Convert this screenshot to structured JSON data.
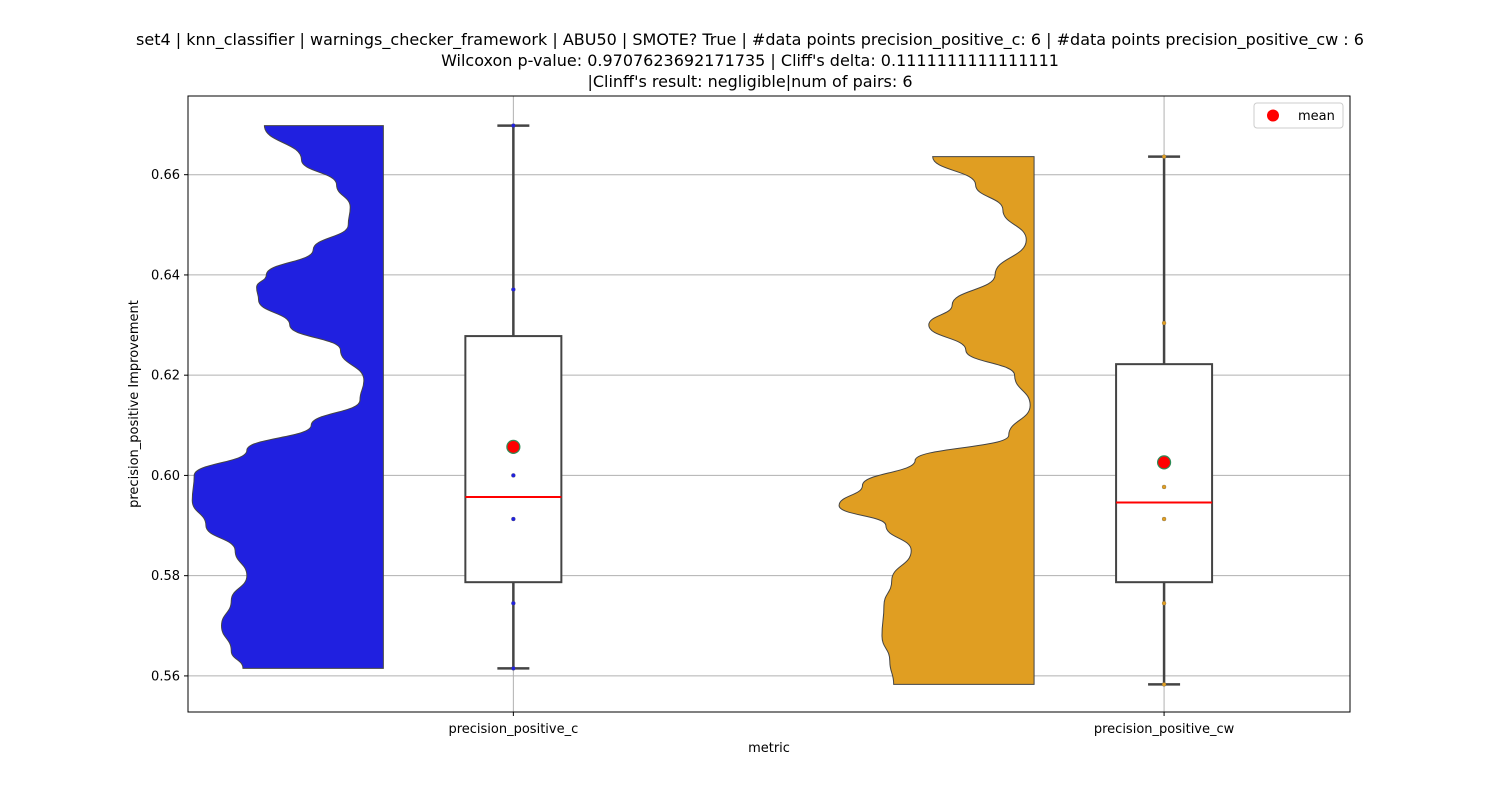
{
  "chart_data": {
    "type": "violin+box",
    "title_lines": [
      "set4 | knn_classifier | warnings_checker_framework | ABU50 | SMOTE? True | #data points precision_positive_c: 6 | #data points precision_positive_cw : 6",
      "Wilcoxon p-value: 0.9707623692171735 | Cliff's delta: 0.1111111111111111",
      "|Clinff's result: negligible|num of pairs: 6"
    ],
    "xlabel": "metric",
    "ylabel": "precision_positive Improvement",
    "ylim": [
      0.5528,
      0.6757
    ],
    "yticks": [
      0.56,
      0.58,
      0.6,
      0.62,
      0.64,
      0.66
    ],
    "ytick_labels": [
      "0.56",
      "0.58",
      "0.60",
      "0.62",
      "0.64",
      "0.66"
    ],
    "grid": true,
    "legend": {
      "position": "top-right",
      "label": "mean",
      "marker_color": "#ff0000"
    },
    "categories": [
      "precision_positive_c",
      "precision_positive_cw"
    ],
    "series": [
      {
        "name": "precision_positive_c",
        "color": "#2020e0",
        "points": [
          0.5615,
          0.5745,
          0.5913,
          0.6,
          0.6371,
          0.6698
        ],
        "box": {
          "whisker_low": 0.5615,
          "q1": 0.5787,
          "median": 0.5957,
          "q3": 0.6278,
          "whisker_high": 0.6698
        },
        "mean": 0.6057,
        "violin_profile": [
          [
            0.5615,
            0.72
          ],
          [
            0.565,
            0.78
          ],
          [
            0.57,
            0.83
          ],
          [
            0.575,
            0.78
          ],
          [
            0.58,
            0.7
          ],
          [
            0.585,
            0.76
          ],
          [
            0.59,
            0.91
          ],
          [
            0.595,
            0.98
          ],
          [
            0.6,
            0.97
          ],
          [
            0.605,
            0.7
          ],
          [
            0.61,
            0.37
          ],
          [
            0.615,
            0.12
          ],
          [
            0.619,
            0.1
          ],
          [
            0.625,
            0.22
          ],
          [
            0.63,
            0.48
          ],
          [
            0.635,
            0.64
          ],
          [
            0.6375,
            0.65
          ],
          [
            0.64,
            0.6
          ],
          [
            0.645,
            0.36
          ],
          [
            0.65,
            0.18
          ],
          [
            0.6535,
            0.17
          ],
          [
            0.658,
            0.24
          ],
          [
            0.663,
            0.42
          ],
          [
            0.6698,
            0.61
          ]
        ]
      },
      {
        "name": "precision_positive_cw",
        "color": "#e09e22",
        "points": [
          0.5583,
          0.5745,
          0.5913,
          0.5977,
          0.6304,
          0.6636
        ],
        "box": {
          "whisker_low": 0.5583,
          "q1": 0.5787,
          "median": 0.5946,
          "q3": 0.6222,
          "whisker_high": 0.6636
        },
        "mean": 0.6026,
        "violin_profile": [
          [
            0.5583,
            0.72
          ],
          [
            0.563,
            0.74
          ],
          [
            0.568,
            0.78
          ],
          [
            0.574,
            0.77
          ],
          [
            0.579,
            0.73
          ],
          [
            0.585,
            0.63
          ],
          [
            0.59,
            0.76
          ],
          [
            0.594,
            1.0
          ],
          [
            0.598,
            0.88
          ],
          [
            0.603,
            0.61
          ],
          [
            0.608,
            0.13
          ],
          [
            0.614,
            0.02
          ],
          [
            0.62,
            0.1
          ],
          [
            0.625,
            0.35
          ],
          [
            0.63,
            0.54
          ],
          [
            0.634,
            0.42
          ],
          [
            0.64,
            0.2
          ],
          [
            0.647,
            0.04
          ],
          [
            0.653,
            0.16
          ],
          [
            0.658,
            0.3
          ],
          [
            0.6636,
            0.52
          ]
        ]
      }
    ]
  }
}
